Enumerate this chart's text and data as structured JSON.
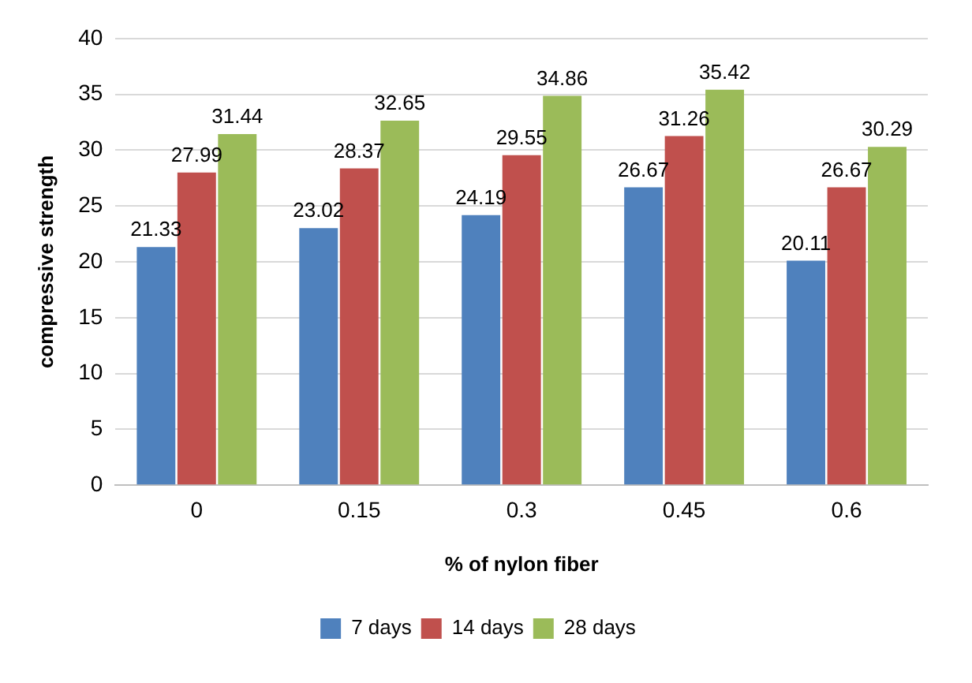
{
  "chart_data": {
    "type": "bar",
    "xlabel": "% of nylon fiber",
    "ylabel": "compressive strength",
    "categories": [
      "0",
      "0.15",
      "0.3",
      "0.45",
      "0.6"
    ],
    "series": [
      {
        "name": "7 days",
        "color": "#4f81bd",
        "values": [
          21.33,
          23.02,
          24.19,
          26.67,
          20.11
        ]
      },
      {
        "name": "14 days",
        "color": "#c0504d",
        "values": [
          27.99,
          28.37,
          29.55,
          31.26,
          26.67
        ]
      },
      {
        "name": "28 days",
        "color": "#9bbb59",
        "values": [
          31.44,
          32.65,
          34.86,
          35.42,
          30.29
        ]
      }
    ],
    "ylim": [
      0,
      40
    ],
    "yticks": [
      0,
      5,
      10,
      15,
      20,
      25,
      30,
      35,
      40
    ],
    "grid": "y",
    "legend": "bottom",
    "data_labels": true
  }
}
